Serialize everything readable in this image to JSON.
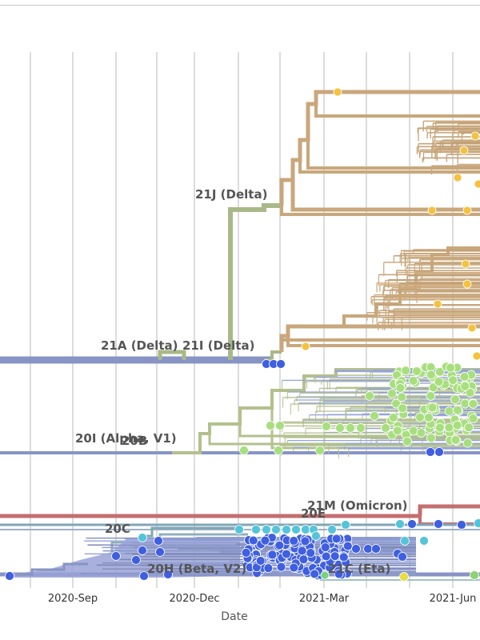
{
  "chart_data": {
    "type": "phylogenetic-tree",
    "xlabel": "Date",
    "x_ticks": [
      "2020-Sep",
      "2020-Dec",
      "2021-Mar",
      "2021-Jun"
    ],
    "clade_labels": [
      "21J (Delta)",
      "21A (Delta)",
      "21I (Delta)",
      "20I (Alpha, V1)",
      "20B",
      "21M (Omicron)",
      "20C",
      "20E",
      "20H (Beta, V2)",
      "21C (Eta)"
    ],
    "colors": {
      "delta": "#c9a77c",
      "delta_tip": "#f3c23f",
      "delta_stem": "#a9b888",
      "alpha": "#b3c08d",
      "alpha_tip": "#a8df7e",
      "basal": "#8794c5",
      "omicron": "#c46f70",
      "blue_tip": "#3f5fe0",
      "cyan_tip": "#56c4d8",
      "yellow_tip": "#e8de44",
      "grid": "#dcdcdc"
    }
  }
}
